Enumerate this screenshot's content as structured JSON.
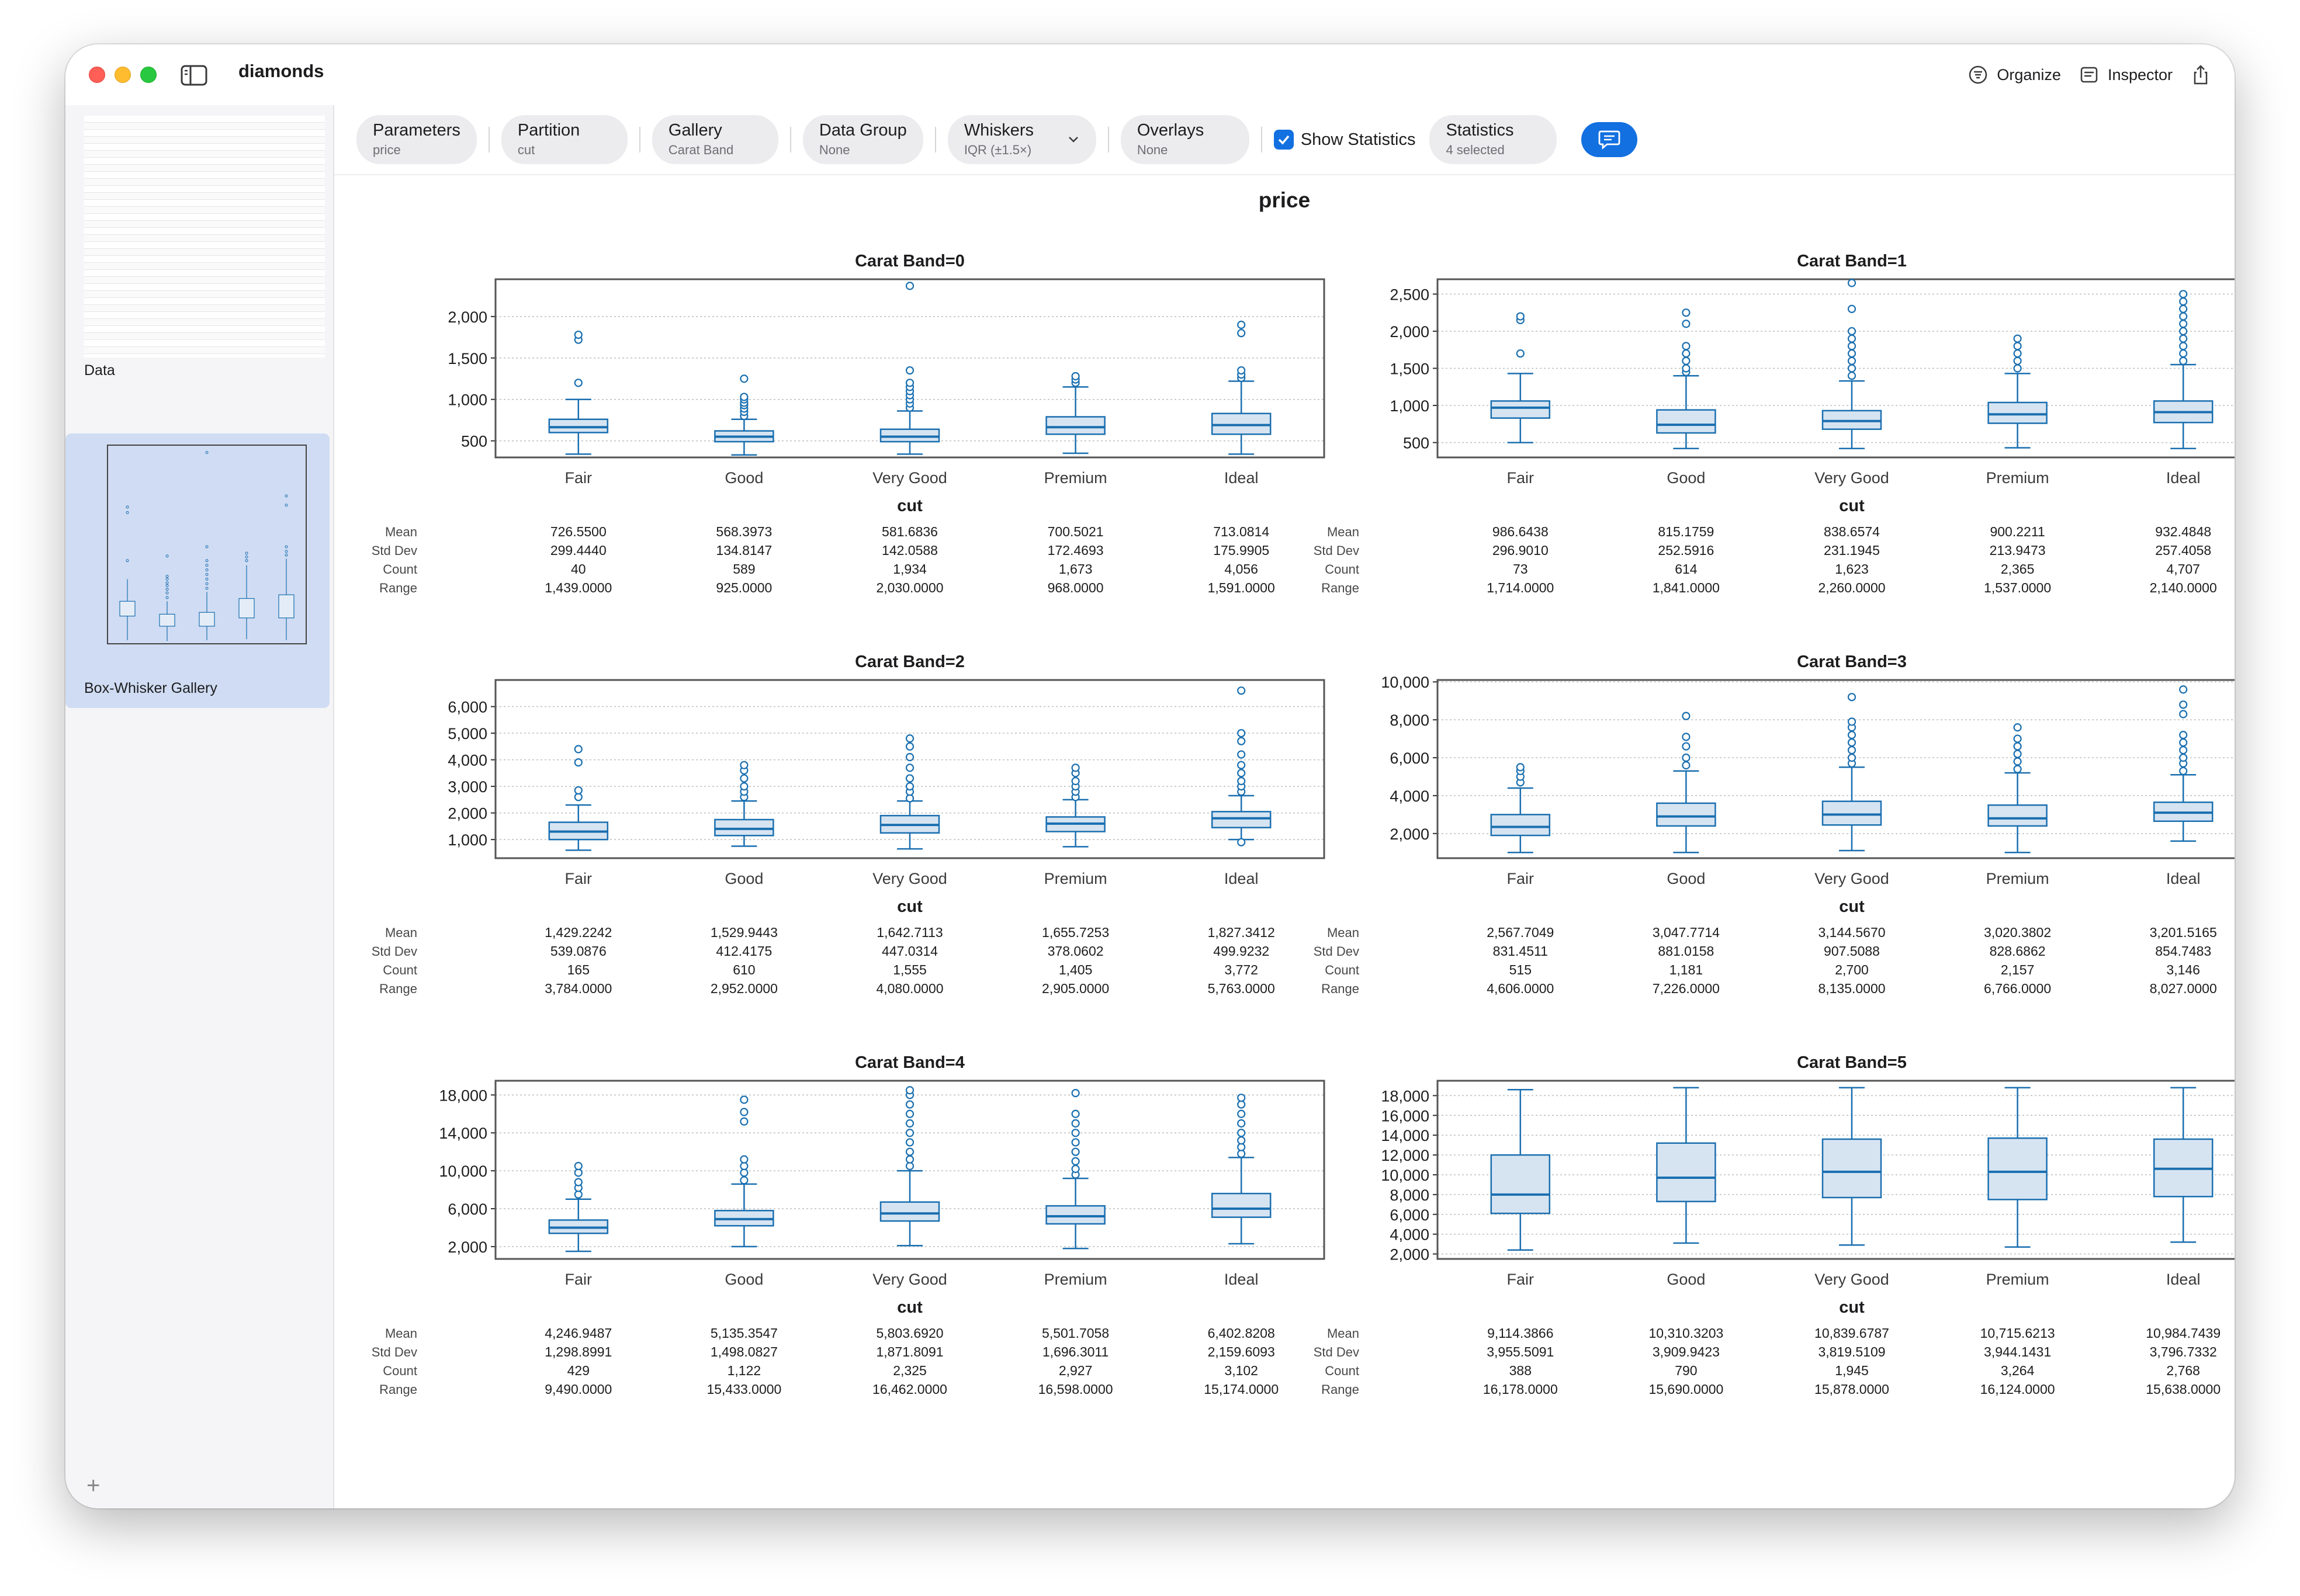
{
  "window": {
    "title": "diamonds"
  },
  "titlebar": {
    "organize_label": "Organize",
    "inspector_label": "Inspector",
    "sidebar_icon": "sidebar-icon",
    "share_icon": "share-icon"
  },
  "sidebar": {
    "items": [
      {
        "label": "Data"
      },
      {
        "label": "Box-Whisker Gallery"
      }
    ],
    "add_label": "+"
  },
  "toolbar": {
    "parameters": {
      "title": "Parameters",
      "value": "price"
    },
    "partition": {
      "title": "Partition",
      "value": "cut"
    },
    "gallery": {
      "title": "Gallery",
      "value": "Carat Band"
    },
    "data_group": {
      "title": "Data Group",
      "value": "None"
    },
    "whiskers": {
      "title": "Whiskers",
      "value": "IQR (±1.5×)"
    },
    "overlays": {
      "title": "Overlays",
      "value": "None"
    },
    "show_statistics": {
      "label": "Show Statistics",
      "checked": true
    },
    "statistics": {
      "title": "Statistics",
      "value": "4 selected"
    },
    "chat_icon": "comment-icon"
  },
  "main": {
    "parameter_title": "price"
  },
  "colors": {
    "box_stroke": "#1a6fb0",
    "box_fill": "#d6e4f2",
    "grid": "#bdbdbd"
  },
  "chart_data": [
    {
      "type": "box",
      "title": "Carat Band=0",
      "xlabel": "cut",
      "ylabel": "",
      "categories": [
        "Fair",
        "Good",
        "Very Good",
        "Premium",
        "Ideal"
      ],
      "ylim": [
        300,
        2450
      ],
      "yticks": [
        500,
        1000,
        1500,
        2000
      ],
      "ytick_labels": [
        "500",
        "1,000",
        "1,500",
        "2,000"
      ],
      "boxes": [
        {
          "low": 340,
          "q1": 600,
          "median": 665,
          "q3": 760,
          "high": 1000,
          "outliers": [
            1200,
            1720,
            1780
          ]
        },
        {
          "low": 330,
          "q1": 490,
          "median": 550,
          "q3": 620,
          "high": 760,
          "outliers": [
            800,
            850,
            890,
            930,
            960,
            1000,
            1030,
            1250
          ]
        },
        {
          "low": 340,
          "q1": 490,
          "median": 550,
          "q3": 640,
          "high": 860,
          "outliers": [
            900,
            950,
            1000,
            1050,
            1100,
            1150,
            1200,
            1350,
            2370
          ]
        },
        {
          "low": 350,
          "q1": 580,
          "median": 665,
          "q3": 790,
          "high": 1150,
          "outliers": [
            1200,
            1240,
            1280
          ]
        },
        {
          "low": 340,
          "q1": 580,
          "median": 690,
          "q3": 830,
          "high": 1220,
          "outliers": [
            1260,
            1300,
            1350,
            1800,
            1900
          ]
        }
      ],
      "stats": {
        "labels": [
          "Mean",
          "Std Dev",
          "Count",
          "Range"
        ],
        "values": [
          [
            "726.5500",
            "299.4440",
            "40",
            "1,439.0000"
          ],
          [
            "568.3973",
            "134.8147",
            "589",
            "925.0000"
          ],
          [
            "581.6836",
            "142.0588",
            "1,934",
            "2,030.0000"
          ],
          [
            "700.5021",
            "172.4693",
            "1,673",
            "968.0000"
          ],
          [
            "713.0814",
            "175.9905",
            "4,056",
            "1,591.0000"
          ]
        ]
      }
    },
    {
      "type": "box",
      "title": "Carat Band=1",
      "xlabel": "cut",
      "ylabel": "",
      "categories": [
        "Fair",
        "Good",
        "Very Good",
        "Premium",
        "Ideal"
      ],
      "ylim": [
        300,
        2700
      ],
      "yticks": [
        500,
        1000,
        1500,
        2000,
        2500
      ],
      "ytick_labels": [
        "500",
        "1,000",
        "1,500",
        "2,000",
        "2,500"
      ],
      "boxes": [
        {
          "low": 500,
          "q1": 830,
          "median": 970,
          "q3": 1060,
          "high": 1430,
          "outliers": [
            1700,
            2150,
            2200
          ]
        },
        {
          "low": 420,
          "q1": 630,
          "median": 740,
          "q3": 940,
          "high": 1400,
          "outliers": [
            1450,
            1500,
            1600,
            1700,
            1800,
            2100,
            2250
          ]
        },
        {
          "low": 420,
          "q1": 680,
          "median": 790,
          "q3": 930,
          "high": 1330,
          "outliers": [
            1400,
            1500,
            1600,
            1700,
            1800,
            1900,
            2000,
            2300,
            2650
          ]
        },
        {
          "low": 430,
          "q1": 760,
          "median": 880,
          "q3": 1040,
          "high": 1430,
          "outliers": [
            1500,
            1600,
            1700,
            1800,
            1900
          ]
        },
        {
          "low": 420,
          "q1": 770,
          "median": 910,
          "q3": 1060,
          "high": 1550,
          "outliers": [
            1600,
            1700,
            1800,
            1900,
            2000,
            2100,
            2200,
            2300,
            2400,
            2500
          ]
        }
      ],
      "stats": {
        "labels": [
          "Mean",
          "Std Dev",
          "Count",
          "Range"
        ],
        "values": [
          [
            "986.6438",
            "296.9010",
            "73",
            "1,714.0000"
          ],
          [
            "815.1759",
            "252.5916",
            "614",
            "1,841.0000"
          ],
          [
            "838.6574",
            "231.1945",
            "1,623",
            "2,260.0000"
          ],
          [
            "900.2211",
            "213.9473",
            "2,365",
            "1,537.0000"
          ],
          [
            "932.4848",
            "257.4058",
            "4,707",
            "2,140.0000"
          ]
        ]
      }
    },
    {
      "type": "box",
      "title": "Carat Band=2",
      "xlabel": "cut",
      "ylabel": "",
      "categories": [
        "Fair",
        "Good",
        "Very Good",
        "Premium",
        "Ideal"
      ],
      "ylim": [
        300,
        7000
      ],
      "yticks": [
        1000,
        2000,
        3000,
        4000,
        5000,
        6000
      ],
      "ytick_labels": [
        "1,000",
        "2,000",
        "3,000",
        "4,000",
        "5,000",
        "6,000"
      ],
      "boxes": [
        {
          "low": 600,
          "q1": 1000,
          "median": 1300,
          "q3": 1650,
          "high": 2300,
          "outliers": [
            2600,
            2850,
            3900,
            4400
          ]
        },
        {
          "low": 750,
          "q1": 1150,
          "median": 1400,
          "q3": 1750,
          "high": 2450,
          "outliers": [
            2600,
            2800,
            3000,
            3300,
            3600,
            3800
          ]
        },
        {
          "low": 650,
          "q1": 1250,
          "median": 1550,
          "q3": 1900,
          "high": 2450,
          "outliers": [
            2550,
            2800,
            3000,
            3300,
            3700,
            4100,
            4500,
            4800
          ]
        },
        {
          "low": 730,
          "q1": 1300,
          "median": 1600,
          "q3": 1850,
          "high": 2500,
          "outliers": [
            2600,
            2800,
            3000,
            3200,
            3500,
            3700
          ]
        },
        {
          "low": 1000,
          "q1": 1450,
          "median": 1800,
          "q3": 2050,
          "high": 2650,
          "outliers": [
            900,
            2800,
            3000,
            3200,
            3500,
            3800,
            4200,
            4700,
            5000,
            6600
          ]
        }
      ],
      "stats": {
        "labels": [
          "Mean",
          "Std Dev",
          "Count",
          "Range"
        ],
        "values": [
          [
            "1,429.2242",
            "539.0876",
            "165",
            "3,784.0000"
          ],
          [
            "1,529.9443",
            "412.4175",
            "610",
            "2,952.0000"
          ],
          [
            "1,642.7113",
            "447.0314",
            "1,555",
            "4,080.0000"
          ],
          [
            "1,655.7253",
            "378.0602",
            "1,405",
            "2,905.0000"
          ],
          [
            "1,827.3412",
            "499.9232",
            "3,772",
            "5,763.0000"
          ]
        ]
      }
    },
    {
      "type": "box",
      "title": "Carat Band=3",
      "xlabel": "cut",
      "ylabel": "",
      "categories": [
        "Fair",
        "Good",
        "Very Good",
        "Premium",
        "Ideal"
      ],
      "ylim": [
        700,
        10100
      ],
      "yticks": [
        2000,
        4000,
        6000,
        8000,
        10000
      ],
      "ytick_labels": [
        "2,000",
        "4,000",
        "6,000",
        "8,000",
        "10,000"
      ],
      "boxes": [
        {
          "low": 1000,
          "q1": 1900,
          "median": 2350,
          "q3": 3000,
          "high": 4400,
          "outliers": [
            4700,
            5000,
            5300,
            5500
          ]
        },
        {
          "low": 1000,
          "q1": 2400,
          "median": 2900,
          "q3": 3600,
          "high": 5300,
          "outliers": [
            5600,
            6000,
            6600,
            7100,
            8200
          ]
        },
        {
          "low": 1100,
          "q1": 2450,
          "median": 3000,
          "q3": 3700,
          "high": 5500,
          "outliers": [
            5700,
            6000,
            6400,
            6800,
            7200,
            7600,
            7900,
            9200
          ]
        },
        {
          "low": 1000,
          "q1": 2400,
          "median": 2800,
          "q3": 3500,
          "high": 5200,
          "outliers": [
            5400,
            5800,
            6200,
            6600,
            7000,
            7600
          ]
        },
        {
          "low": 1600,
          "q1": 2650,
          "median": 3100,
          "q3": 3650,
          "high": 5100,
          "outliers": [
            5300,
            5700,
            6000,
            6400,
            6800,
            7200,
            8300,
            8800,
            9600
          ]
        }
      ],
      "stats": {
        "labels": [
          "Mean",
          "Std Dev",
          "Count",
          "Range"
        ],
        "values": [
          [
            "2,567.7049",
            "831.4511",
            "515",
            "4,606.0000"
          ],
          [
            "3,047.7714",
            "881.0158",
            "1,181",
            "7,226.0000"
          ],
          [
            "3,144.5670",
            "907.5088",
            "2,700",
            "8,135.0000"
          ],
          [
            "3,020.3802",
            "828.6862",
            "2,157",
            "6,766.0000"
          ],
          [
            "3,201.5165",
            "854.7483",
            "3,146",
            "8,027.0000"
          ]
        ]
      }
    },
    {
      "type": "box",
      "title": "Carat Band=4",
      "xlabel": "cut",
      "ylabel": "",
      "categories": [
        "Fair",
        "Good",
        "Very Good",
        "Premium",
        "Ideal"
      ],
      "ylim": [
        700,
        19500
      ],
      "yticks": [
        2000,
        6000,
        10000,
        14000,
        18000
      ],
      "ytick_labels": [
        "2,000",
        "6,000",
        "10,000",
        "14,000",
        "18,000"
      ],
      "boxes": [
        {
          "low": 1500,
          "q1": 3400,
          "median": 4000,
          "q3": 4800,
          "high": 7000,
          "outliers": [
            7500,
            8200,
            8800,
            9800,
            10500
          ]
        },
        {
          "low": 2000,
          "q1": 4200,
          "median": 4900,
          "q3": 5800,
          "high": 8600,
          "outliers": [
            9000,
            9800,
            10500,
            11200,
            15200,
            16200,
            17500
          ]
        },
        {
          "low": 2100,
          "q1": 4700,
          "median": 5500,
          "q3": 6700,
          "high": 10000,
          "outliers": [
            10500,
            11200,
            12000,
            13000,
            14000,
            15000,
            16000,
            17000,
            18000,
            18500
          ]
        },
        {
          "low": 1800,
          "q1": 4400,
          "median": 5200,
          "q3": 6300,
          "high": 9200,
          "outliers": [
            9600,
            10200,
            11000,
            12000,
            13000,
            14000,
            15000,
            16000,
            18200
          ]
        },
        {
          "low": 2300,
          "q1": 5100,
          "median": 6000,
          "q3": 7600,
          "high": 11400,
          "outliers": [
            11800,
            12500,
            13200,
            14000,
            15000,
            16000,
            17000,
            17700
          ]
        }
      ],
      "stats": {
        "labels": [
          "Mean",
          "Std Dev",
          "Count",
          "Range"
        ],
        "values": [
          [
            "4,246.9487",
            "1,298.8991",
            "429",
            "9,490.0000"
          ],
          [
            "5,135.3547",
            "1,498.0827",
            "1,122",
            "15,433.0000"
          ],
          [
            "5,803.6920",
            "1,871.8091",
            "2,325",
            "16,462.0000"
          ],
          [
            "5,501.7058",
            "1,696.3011",
            "2,927",
            "16,598.0000"
          ],
          [
            "6,402.8208",
            "2,159.6093",
            "3,102",
            "15,174.0000"
          ]
        ]
      }
    },
    {
      "type": "box",
      "title": "Carat Band=5",
      "xlabel": "cut",
      "ylabel": "",
      "categories": [
        "Fair",
        "Good",
        "Very Good",
        "Premium",
        "Ideal"
      ],
      "ylim": [
        1500,
        19500
      ],
      "yticks": [
        2000,
        4000,
        6000,
        8000,
        10000,
        12000,
        14000,
        16000,
        18000
      ],
      "ytick_labels": [
        "2,000",
        "4,000",
        "6,000",
        "8,000",
        "10,000",
        "12,000",
        "14,000",
        "16,000",
        "18,000"
      ],
      "boxes": [
        {
          "low": 2400,
          "q1": 6100,
          "median": 8000,
          "q3": 12000,
          "high": 18600,
          "outliers": []
        },
        {
          "low": 3100,
          "q1": 7300,
          "median": 9700,
          "q3": 13200,
          "high": 18800,
          "outliers": []
        },
        {
          "low": 2900,
          "q1": 7700,
          "median": 10300,
          "q3": 13600,
          "high": 18800,
          "outliers": []
        },
        {
          "low": 2700,
          "q1": 7500,
          "median": 10300,
          "q3": 13700,
          "high": 18800,
          "outliers": []
        },
        {
          "low": 3200,
          "q1": 7800,
          "median": 10600,
          "q3": 13600,
          "high": 18800,
          "outliers": []
        }
      ],
      "stats": {
        "labels": [
          "Mean",
          "Std Dev",
          "Count",
          "Range"
        ],
        "values": [
          [
            "9,114.3866",
            "3,955.5091",
            "388",
            "16,178.0000"
          ],
          [
            "10,310.3203",
            "3,909.9423",
            "790",
            "15,690.0000"
          ],
          [
            "10,839.6787",
            "3,819.5109",
            "1,945",
            "15,878.0000"
          ],
          [
            "10,715.6213",
            "3,944.1431",
            "3,264",
            "16,124.0000"
          ],
          [
            "10,984.7439",
            "3,796.7332",
            "2,768",
            "15,638.0000"
          ]
        ]
      }
    }
  ]
}
